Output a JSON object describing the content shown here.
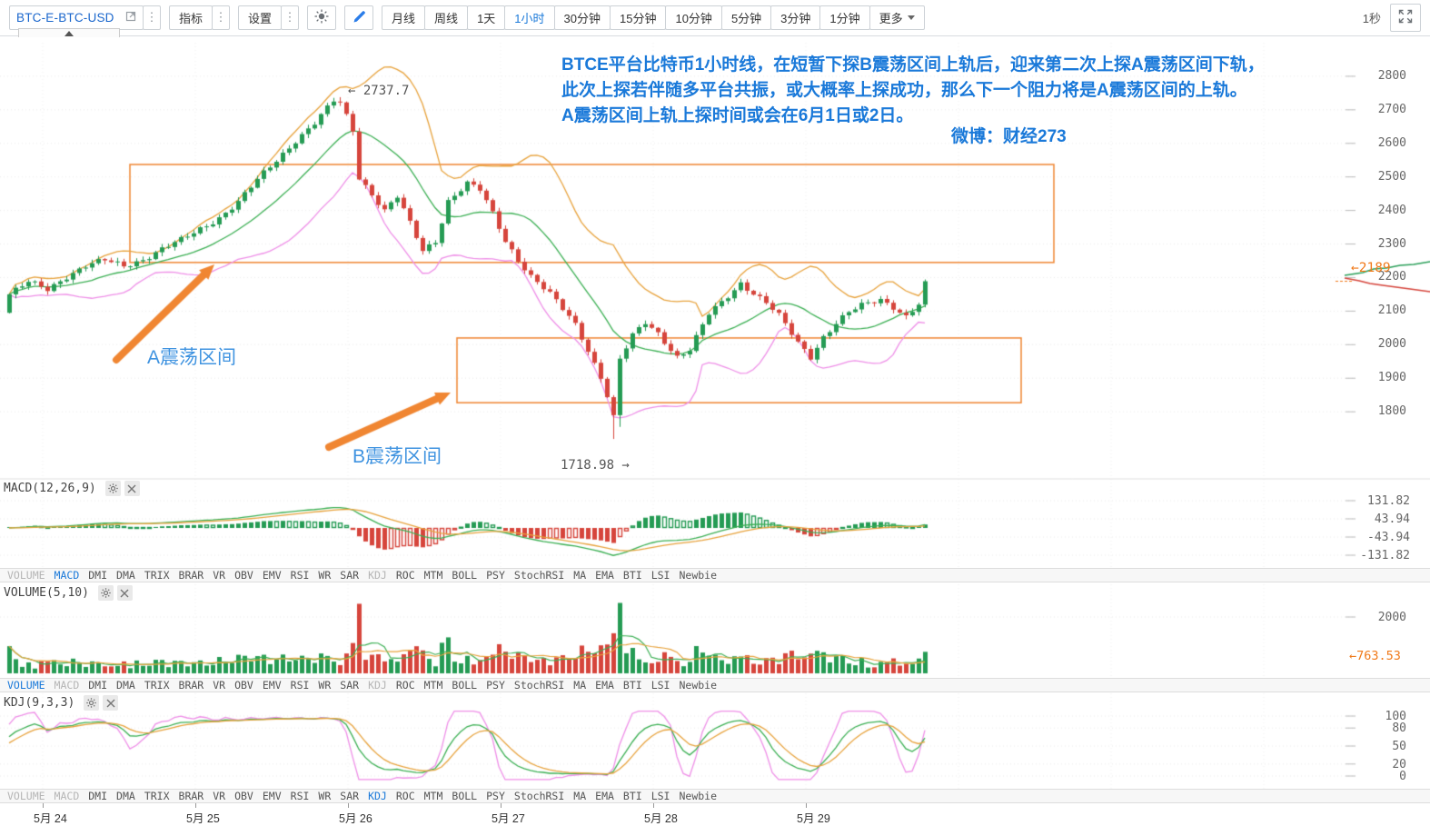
{
  "toolbar": {
    "symbol": "BTC-E-BTC-USD",
    "indicators_label": "指标",
    "settings_label": "设置",
    "timeframes": [
      "月线",
      "周线",
      "1天",
      "1小时",
      "30分钟",
      "15分钟",
      "10分钟",
      "5分钟",
      "3分钟",
      "1分钟"
    ],
    "active_timeframe": "1小时",
    "more_label": "更多",
    "tick_interval_label": "1秒"
  },
  "annotations": {
    "commentary": [
      "BTCE平台比特币1小时线，在短暂下探B震荡区间上轨后，迎来第二次上探A震荡区间下轨，",
      "此次上探若伴随多平台共振，或大概率上探成功，那么下一个阻力将是A震荡区间的上轨。",
      "A震荡区间上轨上探时间或会在6月1日或2日。"
    ],
    "weibo": "微博：财经273",
    "zone_a_label": "A震荡区间",
    "zone_b_label": "B震荡区间",
    "peak_price_label": "← 2737.7",
    "low_price_label": "1718.98 →",
    "current_price_label": "←2189"
  },
  "price_axis": {
    "ticks": [
      2800,
      2700,
      2600,
      2500,
      2400,
      2300,
      2200,
      2100,
      2000,
      1900,
      1800
    ]
  },
  "indicator_tabs": [
    "VOLUME",
    "MACD",
    "DMI",
    "DMA",
    "TRIX",
    "BRAR",
    "VR",
    "OBV",
    "EMV",
    "RSI",
    "WR",
    "SAR",
    "KDJ",
    "ROC",
    "MTM",
    "BOLL",
    "PSY",
    "StochRSI",
    "MA",
    "EMA",
    "BTI",
    "LSI",
    "Newbie"
  ],
  "open_indicators": [
    "VOLUME",
    "MACD",
    "KDJ"
  ],
  "panels": {
    "macd": {
      "title": "MACD(12,26,9)",
      "axis_values": [
        131.82,
        43.94,
        -43.94,
        -131.82
      ],
      "active_tab": "MACD"
    },
    "volume": {
      "title": "VOLUME(5,10)",
      "axis_values": [
        2000
      ],
      "current_value_label": "←763.53",
      "active_tab": "VOLUME"
    },
    "kdj": {
      "title": "KDJ(9,3,3)",
      "axis_values": [
        100,
        80,
        50,
        20,
        0
      ],
      "active_tab": "KDJ"
    }
  },
  "date_axis": [
    "5月 24",
    "5月 25",
    "5月 26",
    "5月 27",
    "5月 28",
    "5月 29"
  ],
  "chart_data": {
    "type": "candlestick",
    "symbol": "BTC-E-BTC-USD",
    "interval": "1小时",
    "candle_count": 145,
    "visible_high": 2737.7,
    "visible_low": 1718.98,
    "last_price": 2189,
    "last_volume": 763.53,
    "price_range": [
      1600,
      2900
    ],
    "close_anchors": [
      [
        0,
        2150
      ],
      [
        3,
        2185
      ],
      [
        6,
        2165
      ],
      [
        9,
        2205
      ],
      [
        12,
        2235
      ],
      [
        15,
        2250
      ],
      [
        18,
        2235
      ],
      [
        21,
        2255
      ],
      [
        24,
        2285
      ],
      [
        27,
        2310
      ],
      [
        30,
        2345
      ],
      [
        33,
        2380
      ],
      [
        36,
        2425
      ],
      [
        39,
        2490
      ],
      [
        42,
        2550
      ],
      [
        45,
        2610
      ],
      [
        48,
        2660
      ],
      [
        51,
        2725
      ],
      [
        52,
        2722
      ],
      [
        54,
        2640
      ],
      [
        55,
        2500
      ],
      [
        57,
        2450
      ],
      [
        59,
        2400
      ],
      [
        61,
        2440
      ],
      [
        63,
        2360
      ],
      [
        65,
        2280
      ],
      [
        67,
        2310
      ],
      [
        69,
        2430
      ],
      [
        72,
        2480
      ],
      [
        74,
        2460
      ],
      [
        76,
        2390
      ],
      [
        78,
        2310
      ],
      [
        80,
        2255
      ],
      [
        82,
        2205
      ],
      [
        85,
        2150
      ],
      [
        87,
        2105
      ],
      [
        89,
        2060
      ],
      [
        91,
        1985
      ],
      [
        93,
        1905
      ],
      [
        94,
        1850
      ],
      [
        95,
        1790
      ],
      [
        96,
        1955
      ],
      [
        98,
        2025
      ],
      [
        100,
        2065
      ],
      [
        102,
        2035
      ],
      [
        105,
        1965
      ],
      [
        107,
        1985
      ],
      [
        110,
        2090
      ],
      [
        112,
        2125
      ],
      [
        115,
        2185
      ],
      [
        117,
        2155
      ],
      [
        119,
        2125
      ],
      [
        121,
        2085
      ],
      [
        124,
        2005
      ],
      [
        126,
        1965
      ],
      [
        128,
        2025
      ],
      [
        130,
        2065
      ],
      [
        132,
        2095
      ],
      [
        134,
        2115
      ],
      [
        137,
        2135
      ],
      [
        139,
        2115
      ],
      [
        141,
        2085
      ],
      [
        143,
        2120
      ],
      [
        144,
        2189
      ]
    ],
    "zone_a": {
      "label": "A震荡区间",
      "price_top": 2537,
      "price_bottom": 2245
    },
    "zone_b": {
      "label": "B震荡区间",
      "price_top": 2020,
      "price_bottom": 1827
    },
    "indicators_shown": [
      "BOLL",
      "MACD(12,26,9)",
      "VOLUME(5,10)",
      "KDJ(9,3,3)"
    ],
    "colors": {
      "up": "#259b54",
      "down": "#d6453c",
      "band_upper": "#e8a33d",
      "band_mid": "#3cb054",
      "band_lower": "#ef8fe8",
      "zone": "#f08632",
      "annotation": "#1a79d9",
      "zone_label": "#3f93e0",
      "price_tag": "#f07a1a",
      "grid": "#ececec"
    }
  }
}
